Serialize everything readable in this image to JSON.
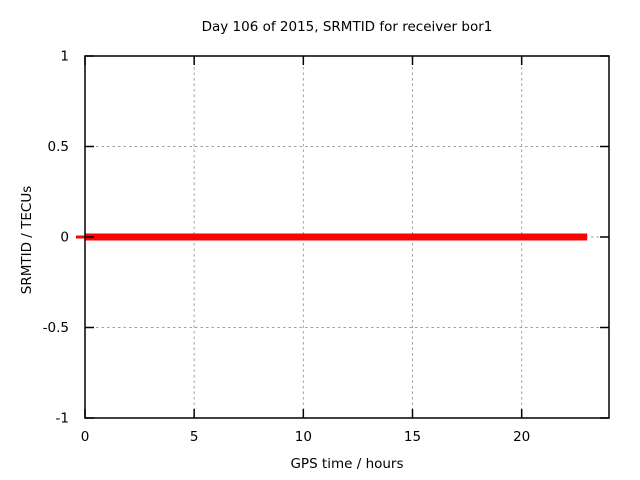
{
  "chart_data": {
    "type": "line",
    "title": "Day 106 of 2015, SRMTID for receiver bor1",
    "xlabel": "GPS time / hours",
    "ylabel": "SRMTID / TECUs",
    "xlim": [
      0,
      24
    ],
    "ylim": [
      -1,
      1
    ],
    "xticks": {
      "values": [
        0,
        5,
        10,
        15,
        20
      ],
      "labels": [
        "0",
        "5",
        "10",
        "15",
        "20"
      ]
    },
    "yticks": {
      "values": [
        -1,
        -0.5,
        0,
        0.5,
        1
      ],
      "labels": [
        "-1",
        "-0.5",
        "0",
        "0.5",
        "1"
      ]
    },
    "grid": true,
    "grid_color": "#a0a0a0",
    "axis_color": "#000000",
    "background_color": "#ffffff",
    "legend": "none",
    "series": [
      {
        "name": "SRMTID",
        "color": "#ff0000",
        "linewidth": 7,
        "x": [
          0,
          23
        ],
        "y": [
          0,
          0
        ]
      }
    ]
  }
}
